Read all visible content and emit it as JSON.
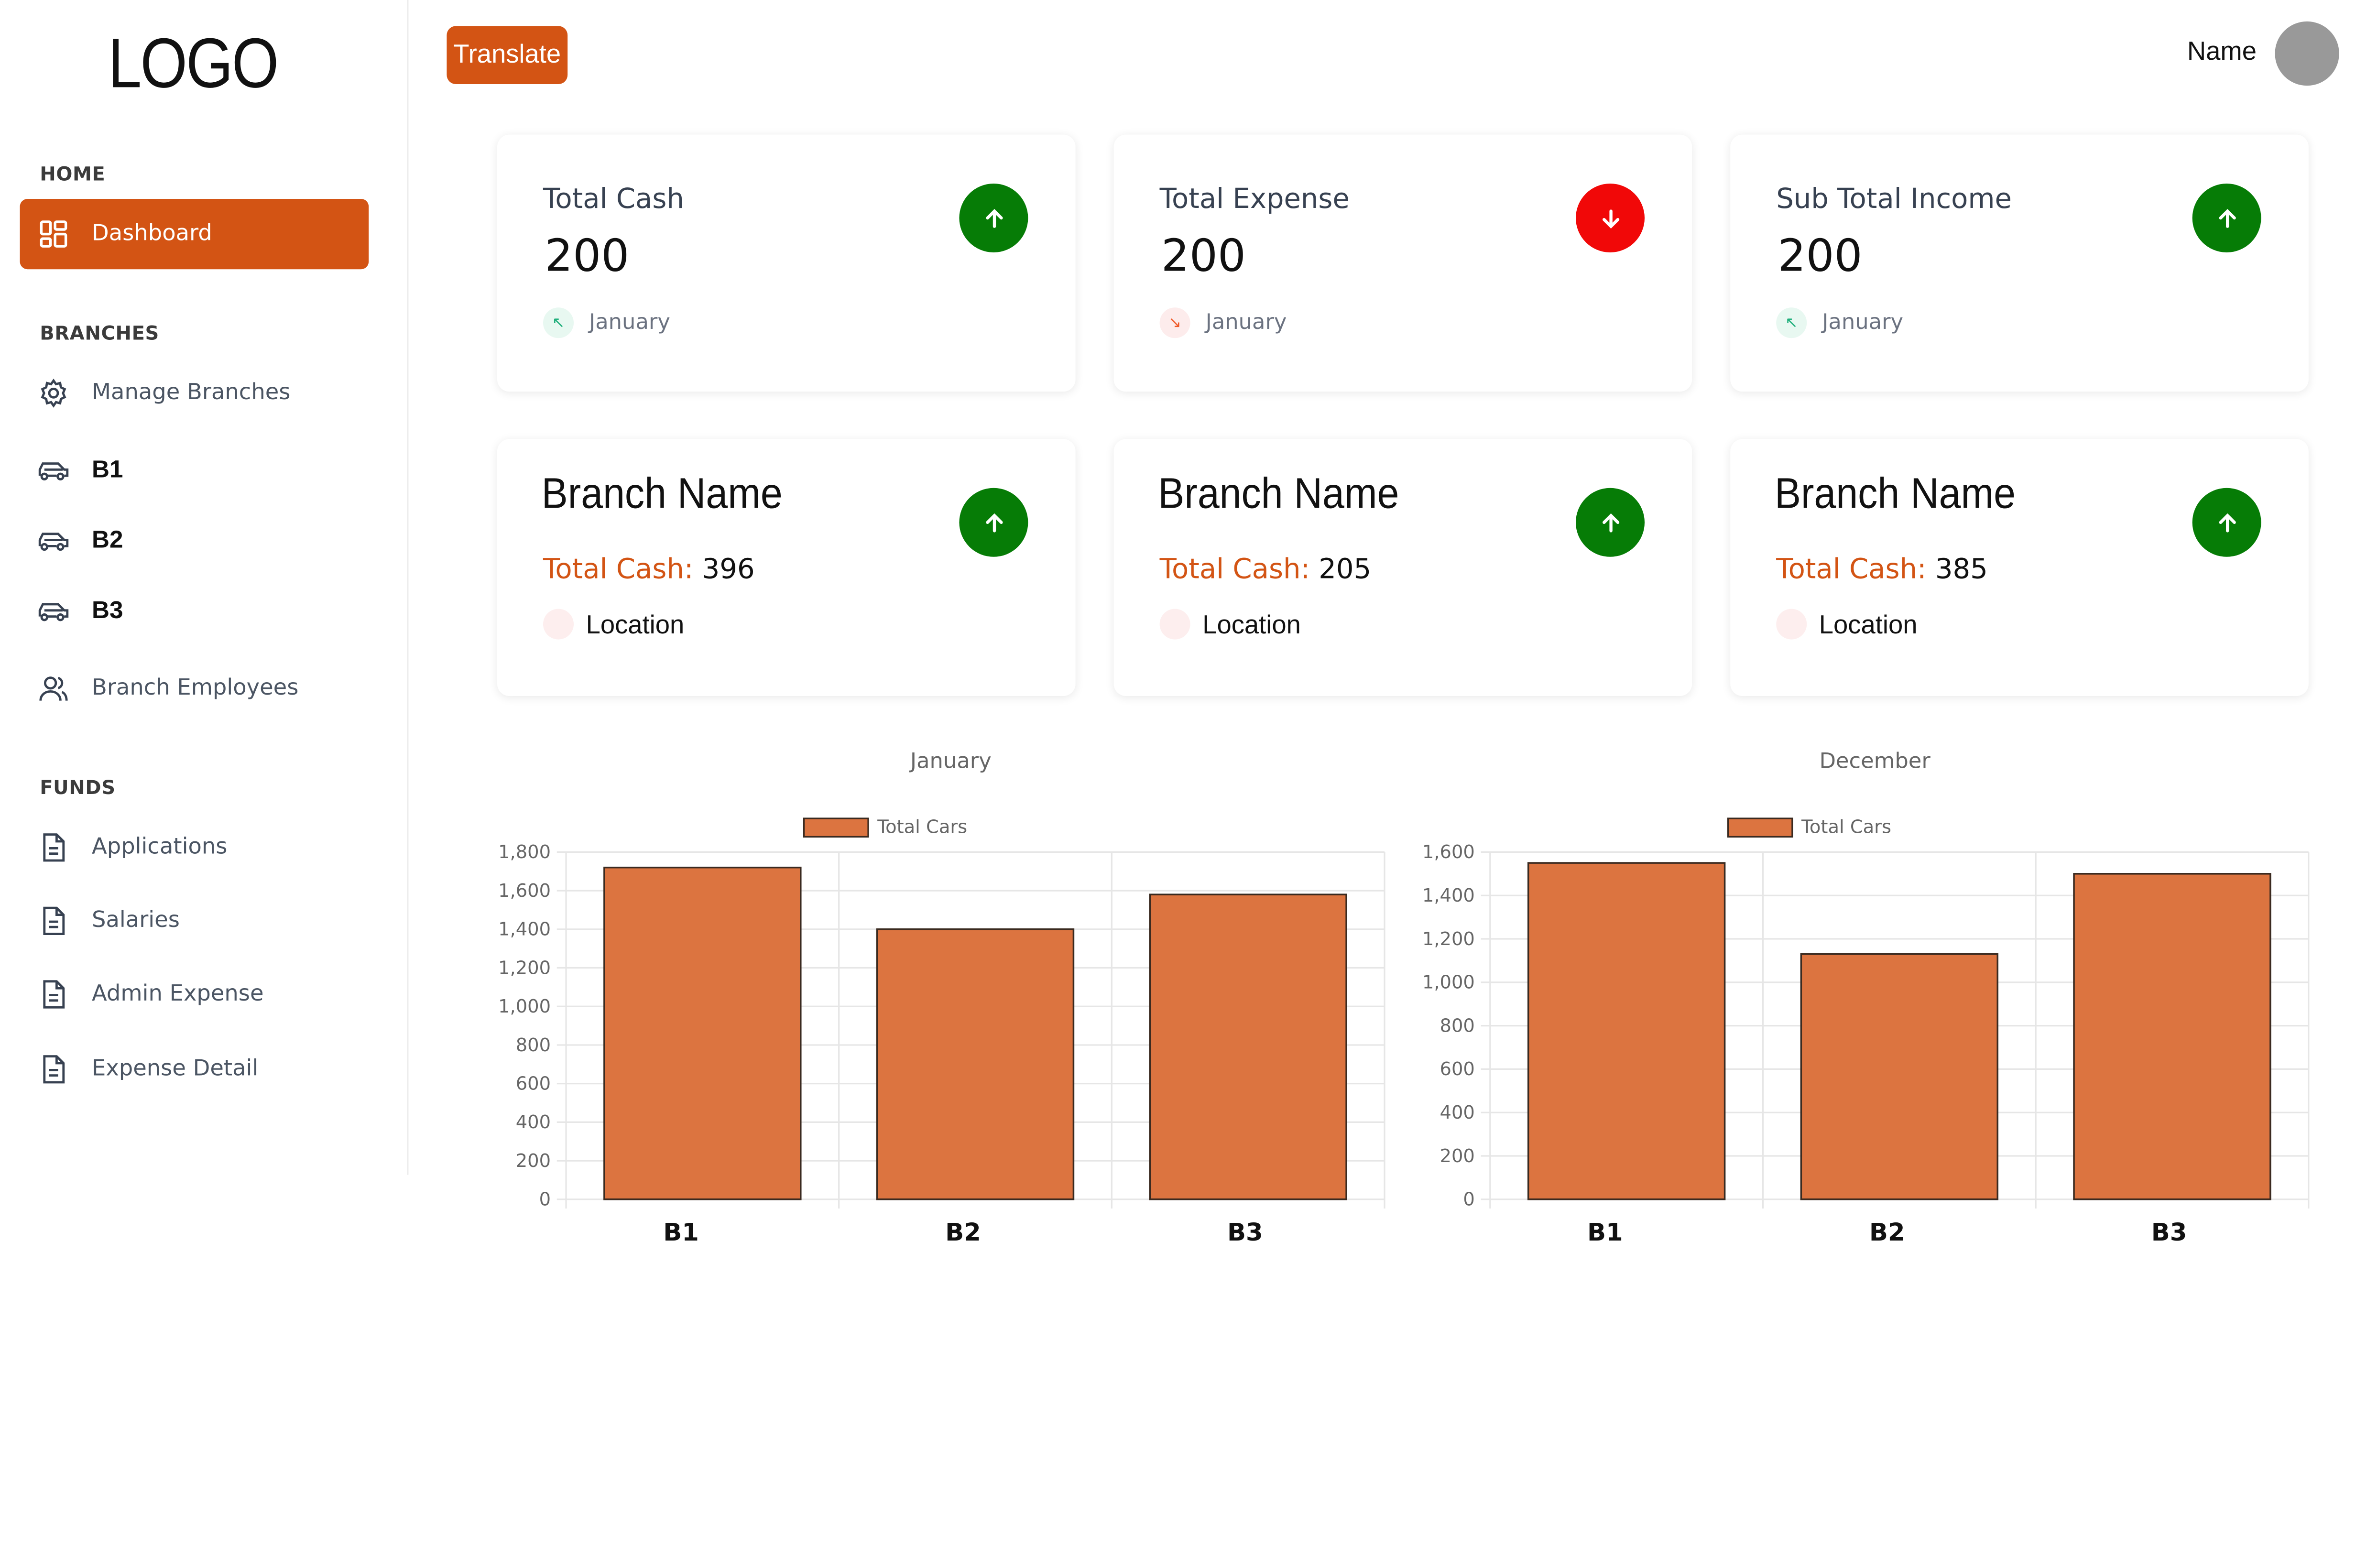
{
  "sidebar": {
    "logo": "LOGO",
    "sections": [
      {
        "heading": "HOME",
        "items": [
          {
            "label": "Dashboard",
            "icon": "dashboard-grid-icon",
            "active": true
          }
        ]
      },
      {
        "heading": "BRANCHES",
        "items": [
          {
            "label": "Manage Branches",
            "icon": "gear-icon"
          },
          {
            "label": "B1",
            "icon": "car-icon"
          },
          {
            "label": "B2",
            "icon": "car-icon"
          },
          {
            "label": "B3",
            "icon": "car-icon"
          },
          {
            "label": "Branch Employees",
            "icon": "users-icon"
          }
        ]
      },
      {
        "heading": "FUNDS",
        "items": [
          {
            "label": "Applications",
            "icon": "document-icon"
          },
          {
            "label": "Salaries",
            "icon": "document-icon"
          },
          {
            "label": "Admin Expense",
            "icon": "document-icon"
          },
          {
            "label": "Expense Detail",
            "icon": "document-icon"
          }
        ]
      }
    ]
  },
  "topbar": {
    "translate_label": "Translate",
    "user_name": "Name"
  },
  "summary_cards": [
    {
      "title": "Total Cash",
      "value": "200",
      "month": "January",
      "trend": "up"
    },
    {
      "title": "Total Expense",
      "value": "200",
      "month": "January",
      "trend": "down"
    },
    {
      "title": "Sub Total Income",
      "value": "200",
      "month": "January",
      "trend": "up"
    }
  ],
  "branch_cards": [
    {
      "name": "Branch Name",
      "cash_label": "Total Cash:",
      "cash_value": "396",
      "location": "Location",
      "trend": "up"
    },
    {
      "name": "Branch Name",
      "cash_label": "Total Cash:",
      "cash_value": "205",
      "location": "Location",
      "trend": "up"
    },
    {
      "name": "Branch Name",
      "cash_label": "Total Cash:",
      "cash_value": "385",
      "location": "Location",
      "trend": "up"
    }
  ],
  "colors": {
    "accent": "#d35414",
    "up": "#067c06",
    "down": "#f10808",
    "bar_fill": "#dc7440",
    "bar_stroke": "#3a2a20"
  },
  "chart_data": [
    {
      "type": "bar",
      "title": "January",
      "categories": [
        "B1",
        "B2",
        "B3"
      ],
      "series": [
        {
          "name": "Total Cars",
          "values": [
            1720,
            1400,
            1580
          ]
        }
      ],
      "ylim": [
        0,
        1800
      ],
      "yticks": [
        "0",
        "200",
        "400",
        "600",
        "800",
        "1,000",
        "1,200",
        "1,400",
        "1,600",
        "1,800"
      ],
      "grid": true,
      "legend": "top-center"
    },
    {
      "type": "bar",
      "title": "December",
      "categories": [
        "B1",
        "B2",
        "B3"
      ],
      "series": [
        {
          "name": "Total Cars",
          "values": [
            1550,
            1130,
            1500
          ]
        }
      ],
      "ylim": [
        0,
        1600
      ],
      "yticks": [
        "0",
        "200",
        "400",
        "600",
        "800",
        "1,000",
        "1,200",
        "1,400",
        "1,600"
      ],
      "grid": true,
      "legend": "top-center"
    }
  ]
}
